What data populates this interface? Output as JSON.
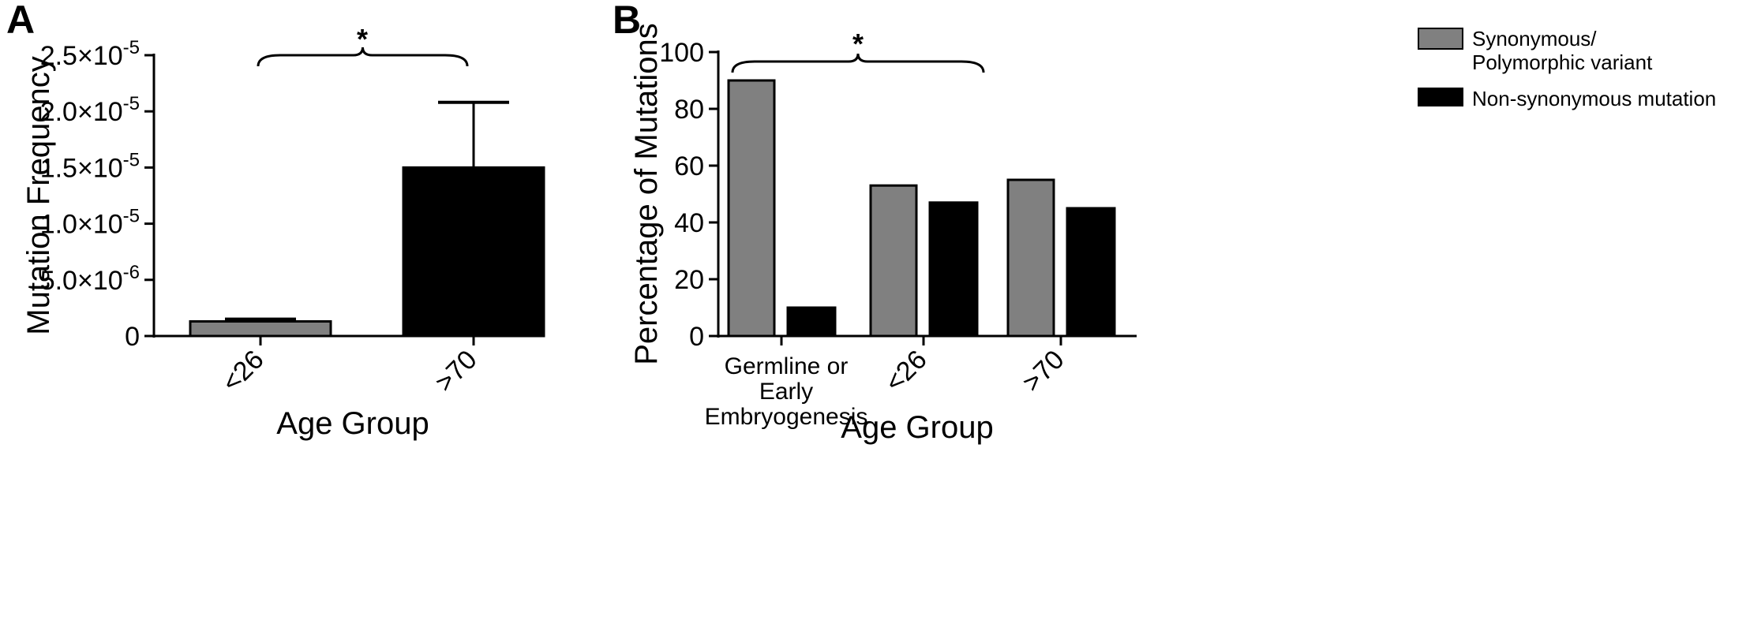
{
  "colors": {
    "gray": "#808080",
    "black": "#000000"
  },
  "panels": {
    "a": {
      "letter": "A"
    },
    "b": {
      "letter": "B"
    }
  },
  "chart_data": [
    {
      "type": "bar",
      "panel": "A",
      "categories": [
        "<26",
        ">70"
      ],
      "values": [
        1.3e-06,
        1.5e-05
      ],
      "error_upper": [
        1.5e-06,
        2.08e-05
      ],
      "colors": [
        "#808080",
        "#000000"
      ],
      "title": "",
      "xlabel": "Age Group",
      "ylabel": "Mutation Frequency",
      "ylim": [
        0,
        2.5e-05
      ],
      "yticks": [
        {
          "value": 2.5e-05,
          "mant": "2.5",
          "exp": "-5"
        },
        {
          "value": 2e-05,
          "mant": "2.0",
          "exp": "-5"
        },
        {
          "value": 1.5e-05,
          "mant": "1.5",
          "exp": "-5"
        },
        {
          "value": 1e-05,
          "mant": "1.0",
          "exp": "-5"
        },
        {
          "value": 5e-06,
          "mant": "5.0",
          "exp": "-6"
        },
        {
          "value": 0,
          "mant": "0",
          "exp": ""
        }
      ],
      "tick_times": "×10",
      "grid": false,
      "annotation": "*"
    },
    {
      "type": "bar",
      "panel": "B",
      "categories": [
        [
          "Germline or",
          "Early",
          "Embryogenesis"
        ],
        [
          "<26"
        ],
        [
          ">70"
        ]
      ],
      "series": [
        {
          "name": "Synonymous/ Polymorphic variant",
          "legend_lines": [
            "Synonymous/",
            "Polymorphic variant"
          ],
          "color": "#808080",
          "values": [
            90,
            53,
            55
          ]
        },
        {
          "name": "Non-synonymous mutation",
          "legend_lines": [
            "Non-synonymous mutation"
          ],
          "color": "#000000",
          "values": [
            10,
            47,
            45
          ]
        }
      ],
      "title": "",
      "xlabel": "Age Group",
      "ylabel": "Percentage of Mutations",
      "ylim": [
        0,
        100
      ],
      "yticks": [
        0,
        20,
        40,
        60,
        80,
        100
      ],
      "grid": false,
      "legend_position": "top-right",
      "annotation": "*"
    }
  ]
}
